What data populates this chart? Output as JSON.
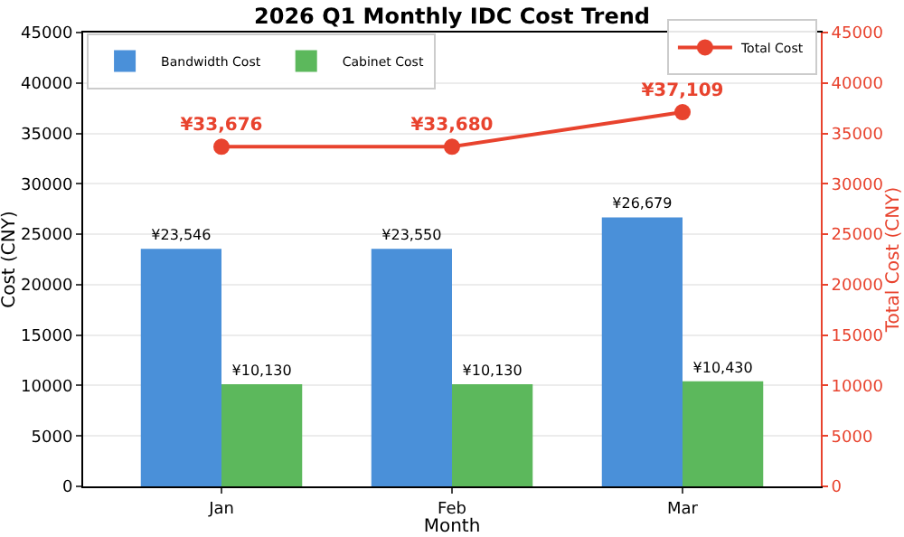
{
  "chart_data": {
    "type": "bar",
    "title": "2026 Q1 Monthly IDC Cost Trend",
    "xlabel": "Month",
    "ylabel": "Cost (CNY)",
    "y2label": "Total Cost (CNY)",
    "categories": [
      "Jan",
      "Feb",
      "Mar"
    ],
    "series": [
      {
        "name": "Bandwidth Cost",
        "color": "#4a90d9",
        "values": [
          23546,
          23550,
          26679
        ],
        "value_labels": [
          "¥23,546",
          "¥23,550",
          "¥26,679"
        ]
      },
      {
        "name": "Cabinet Cost",
        "color": "#5cb85c",
        "values": [
          10130,
          10130,
          10430
        ],
        "value_labels": [
          "¥10,130",
          "¥10,130",
          "¥10,430"
        ]
      },
      {
        "name": "Total Cost",
        "type": "line",
        "axis": "y2",
        "color": "#e8432e",
        "values": [
          33676,
          33680,
          37109
        ],
        "value_labels": [
          "¥33,676",
          "¥33,680",
          "¥37,109"
        ]
      }
    ],
    "ylim": [
      0,
      45000
    ],
    "yticks": [
      0,
      5000,
      10000,
      15000,
      20000,
      25000,
      30000,
      35000,
      40000,
      45000
    ],
    "y2lim": [
      0,
      45000
    ],
    "y2ticks": [
      0,
      5000,
      10000,
      15000,
      20000,
      25000,
      30000,
      35000,
      40000,
      45000
    ],
    "grid": "y",
    "legend": "top",
    "marker": "circle",
    "line_style": "solid"
  }
}
